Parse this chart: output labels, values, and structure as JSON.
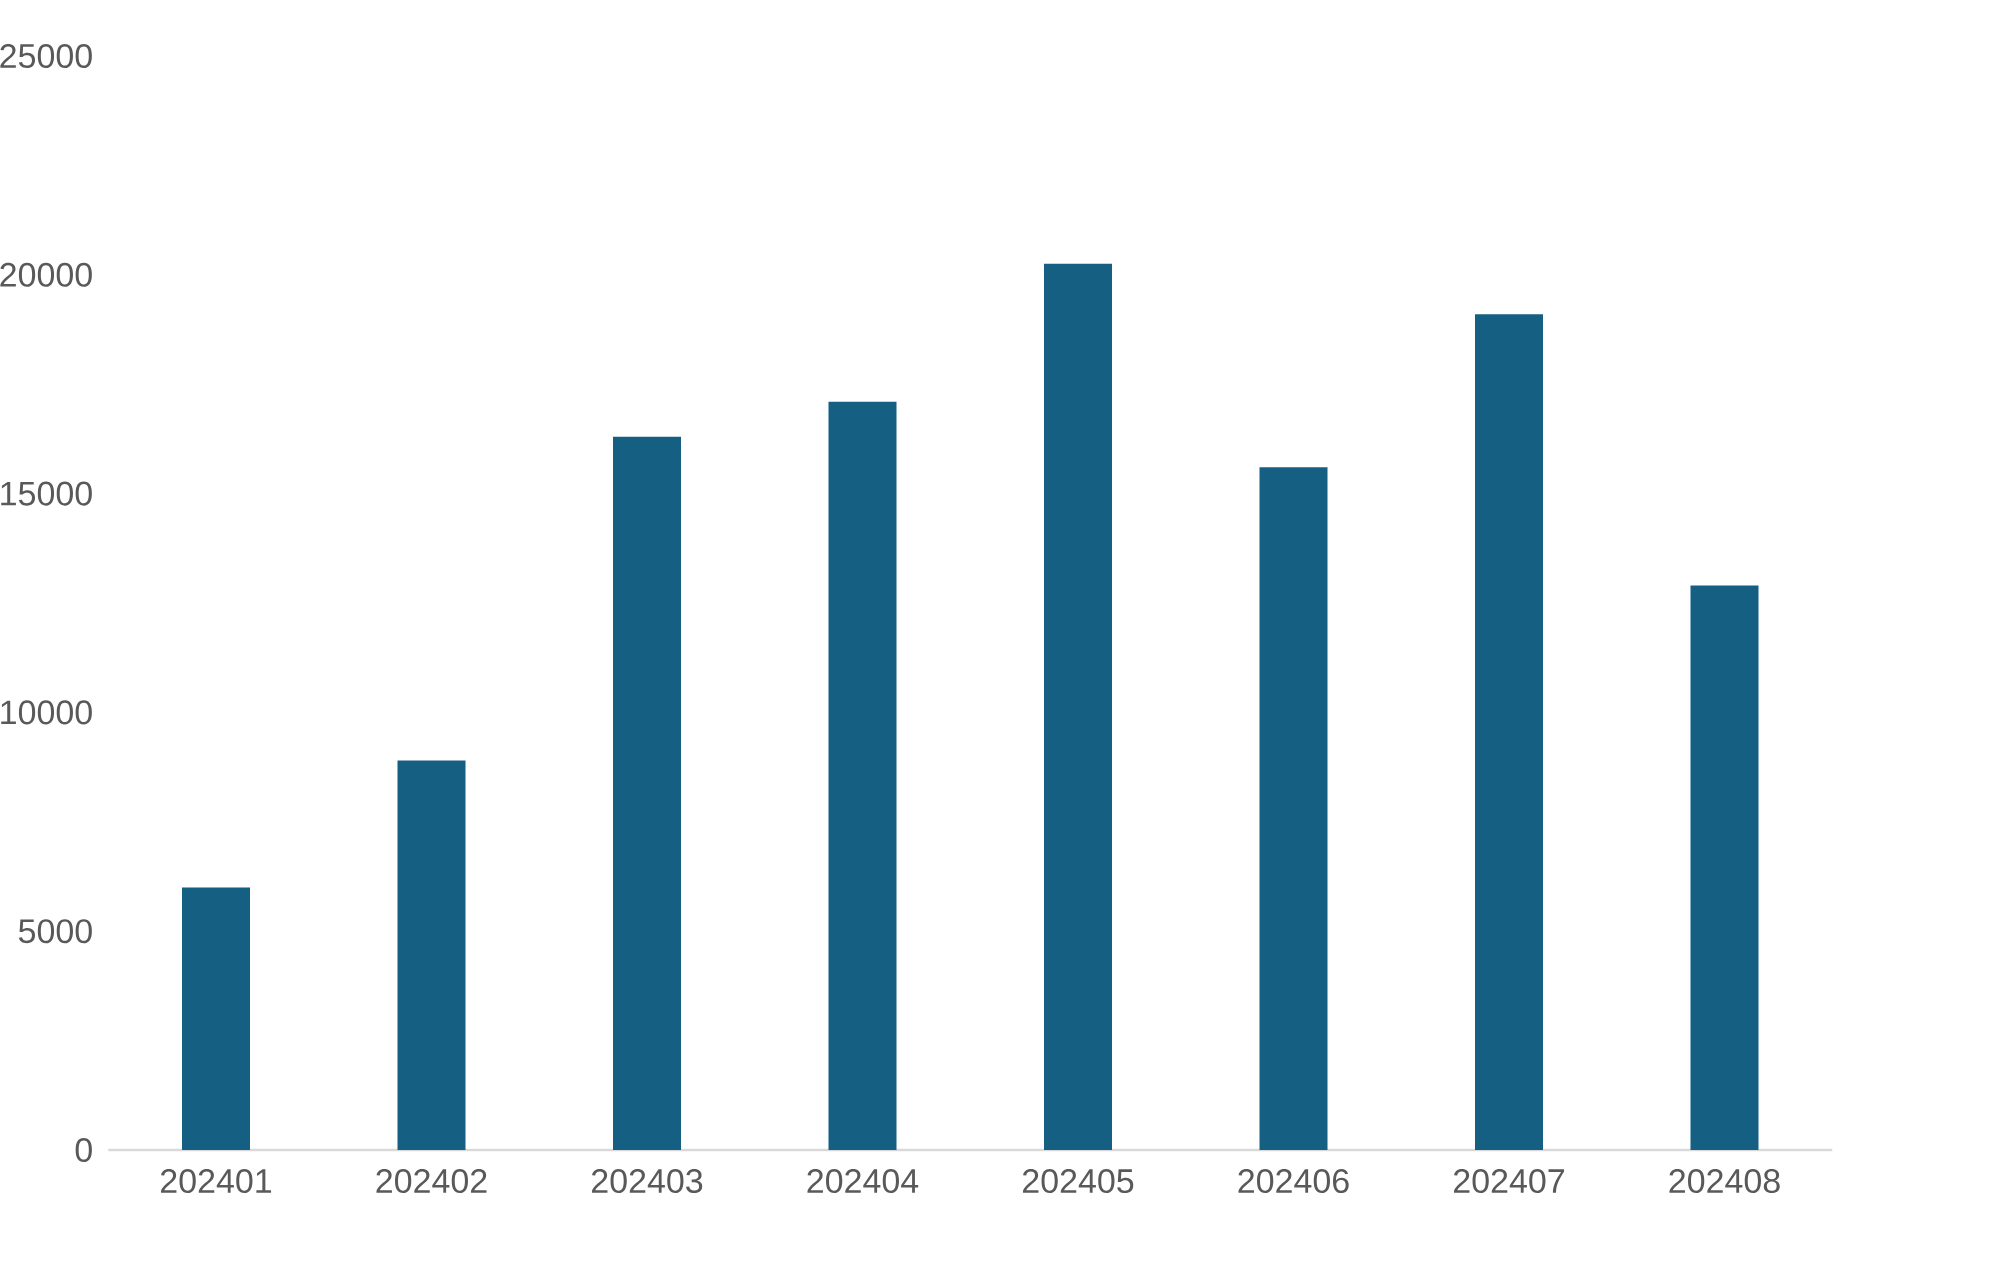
{
  "chart_data": {
    "type": "bar",
    "categories": [
      "202401",
      "202402",
      "202403",
      "202404",
      "202405",
      "202406",
      "202407",
      "202408"
    ],
    "values": [
      6000,
      8900,
      16300,
      17100,
      20250,
      15600,
      19100,
      12900
    ],
    "color": "#155f82",
    "ylim": [
      0,
      25000
    ],
    "yticks": [
      0,
      5000,
      10000,
      15000,
      20000,
      25000
    ]
  }
}
